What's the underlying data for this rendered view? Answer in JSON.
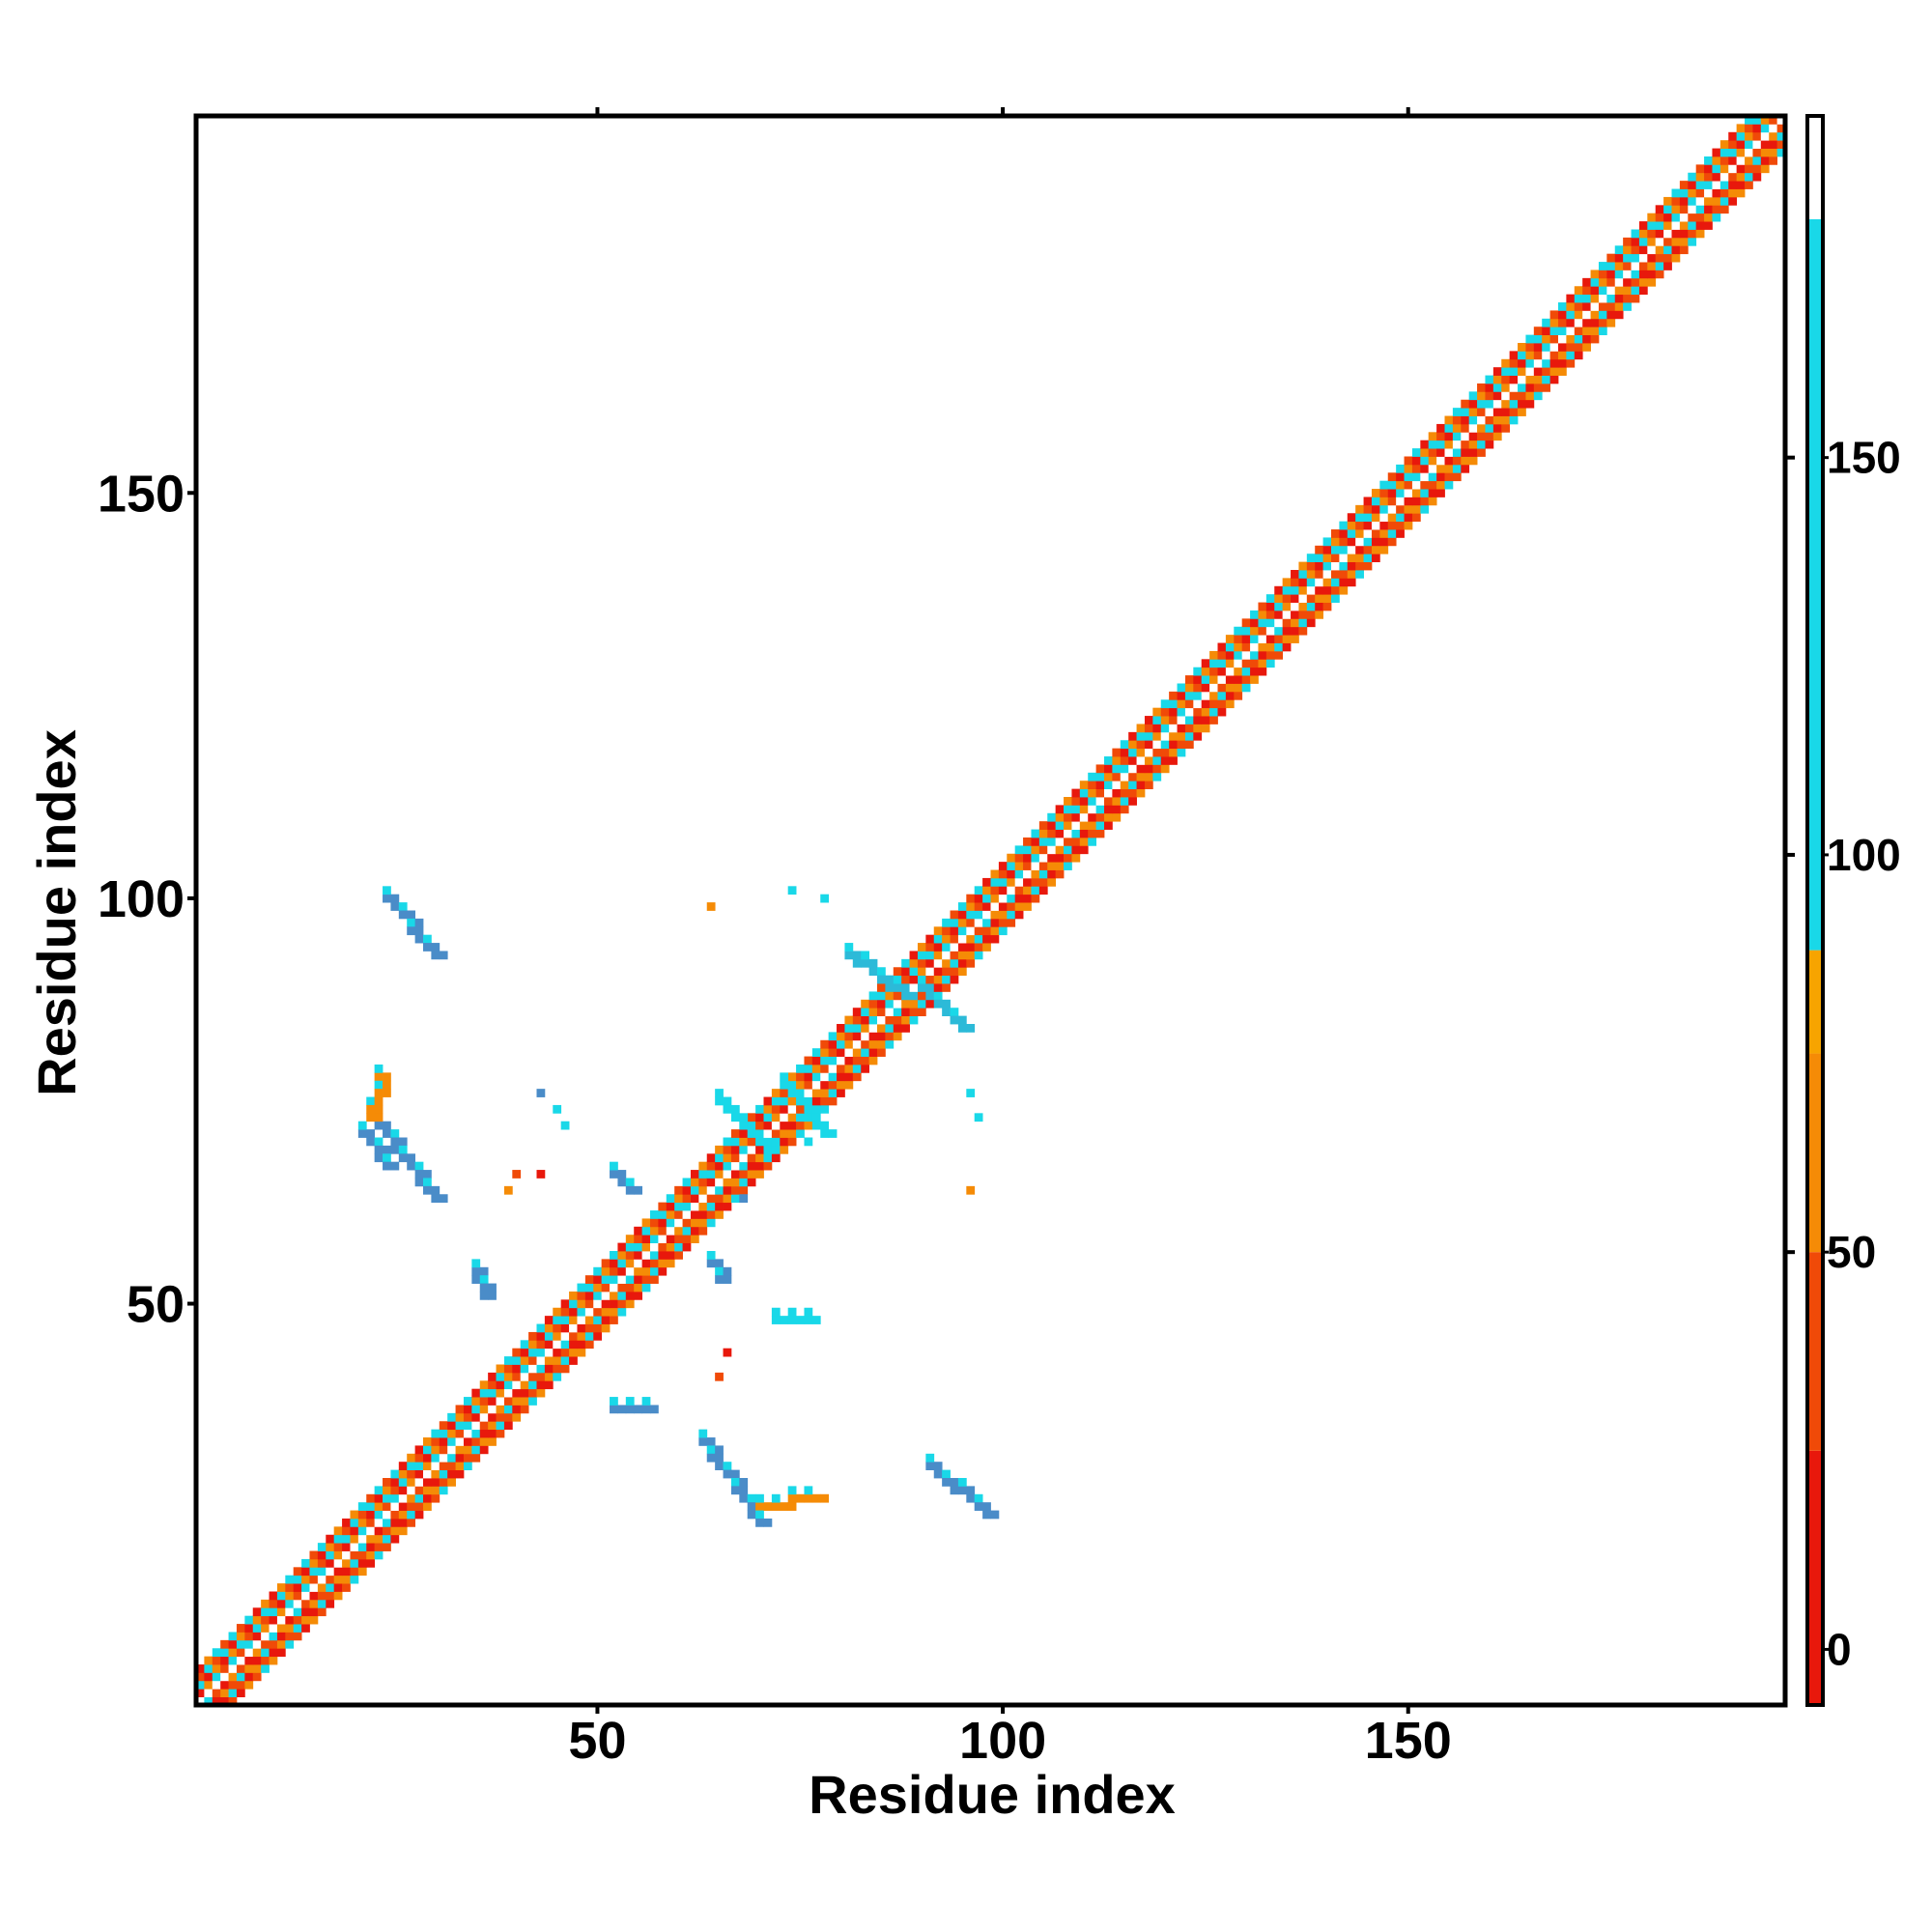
{
  "chart_data": {
    "type": "heatmap",
    "title": "",
    "xlabel": "Residue index",
    "ylabel": "Residue index",
    "xlim": [
      0.5,
      196.5
    ],
    "ylim": [
      0.5,
      196.5
    ],
    "x_ticks": [
      50,
      100,
      150
    ],
    "y_ticks": [
      50,
      100,
      150
    ],
    "colorbar": {
      "ticks": [
        0,
        50,
        100,
        150
      ],
      "range": [
        -7,
        193
      ],
      "bands": [
        {
          "from": -7,
          "to": 25,
          "color": "#e8180c"
        },
        {
          "from": 25,
          "to": 50,
          "color": "#f04a08"
        },
        {
          "from": 50,
          "to": 75,
          "color": "#f58b06"
        },
        {
          "from": 75,
          "to": 88,
          "color": "#f7a400"
        },
        {
          "from": 88,
          "to": 180,
          "color": "#19d8e8"
        },
        {
          "from": 180,
          "to": 193,
          "color": "#ffffff"
        }
      ]
    },
    "palette": {
      "red": "#e8180c",
      "red_orange": "#f04a08",
      "orange": "#f58b06",
      "cyan": "#19d8e8",
      "teal": "#2cbad8",
      "steel_blue": "#4a8cc8",
      "diagonal": "#ffffff"
    },
    "diagonal": {
      "from": 1,
      "to": 196,
      "band": [
        1,
        2,
        3,
        4
      ]
    },
    "off_diagonal_segments": [
      {
        "x0": 24,
        "y0": 100,
        "x1": 30,
        "y1": 93,
        "color": "steel_blue"
      },
      {
        "x0": 23,
        "y0": 72,
        "x1": 30,
        "y1": 63,
        "color": "steel_blue"
      },
      {
        "x0": 21,
        "y0": 71,
        "x1": 24,
        "y1": 67,
        "color": "steel_blue"
      },
      {
        "x0": 23,
        "y0": 78,
        "x1": 22,
        "y1": 73,
        "color": "orange"
      },
      {
        "x0": 63,
        "y0": 33,
        "x1": 70,
        "y1": 23,
        "color": "steel_blue"
      },
      {
        "x0": 70,
        "y0": 25,
        "x1": 77,
        "y1": 26,
        "color": "orange"
      },
      {
        "x0": 91,
        "y0": 30,
        "x1": 98,
        "y1": 24,
        "color": "steel_blue"
      },
      {
        "x0": 81,
        "y0": 93,
        "x1": 88,
        "y1": 88,
        "color": "teal"
      },
      {
        "x0": 90,
        "y0": 89,
        "x1": 95,
        "y1": 84,
        "color": "teal"
      },
      {
        "x0": 73,
        "y0": 77,
        "x1": 78,
        "y1": 71,
        "color": "cyan"
      },
      {
        "x0": 65,
        "y0": 75,
        "x1": 71,
        "y1": 69,
        "color": "cyan"
      },
      {
        "x0": 35,
        "y0": 54,
        "x1": 36,
        "y1": 51,
        "color": "steel_blue"
      },
      {
        "x0": 52,
        "y0": 66,
        "x1": 54,
        "y1": 64,
        "color": "steel_blue"
      },
      {
        "x0": 64,
        "y0": 55,
        "x1": 65,
        "y1": 53,
        "color": "steel_blue"
      },
      {
        "x0": 52,
        "y0": 37,
        "x1": 56,
        "y1": 37,
        "color": "steel_blue"
      },
      {
        "x0": 72,
        "y0": 48,
        "x1": 76,
        "y1": 48,
        "color": "cyan"
      }
    ],
    "off_diagonal_points": [
      {
        "x": 64,
        "y": 99,
        "color": "orange"
      },
      {
        "x": 74,
        "y": 101,
        "color": "cyan"
      },
      {
        "x": 78,
        "y": 100,
        "color": "cyan"
      },
      {
        "x": 43,
        "y": 76,
        "color": "steel_blue"
      },
      {
        "x": 45,
        "y": 74,
        "color": "cyan"
      },
      {
        "x": 46,
        "y": 72,
        "color": "cyan"
      },
      {
        "x": 40,
        "y": 66,
        "color": "red_orange"
      },
      {
        "x": 43,
        "y": 66,
        "color": "red"
      },
      {
        "x": 39,
        "y": 64,
        "color": "orange"
      },
      {
        "x": 96,
        "y": 76,
        "color": "cyan"
      },
      {
        "x": 97,
        "y": 73,
        "color": "cyan"
      },
      {
        "x": 96,
        "y": 64,
        "color": "orange"
      },
      {
        "x": 66,
        "y": 44,
        "color": "red"
      },
      {
        "x": 65,
        "y": 41,
        "color": "red_orange"
      },
      {
        "x": 76,
        "y": 70,
        "color": "cyan"
      },
      {
        "x": 68,
        "y": 63,
        "color": "steel_blue"
      }
    ]
  }
}
